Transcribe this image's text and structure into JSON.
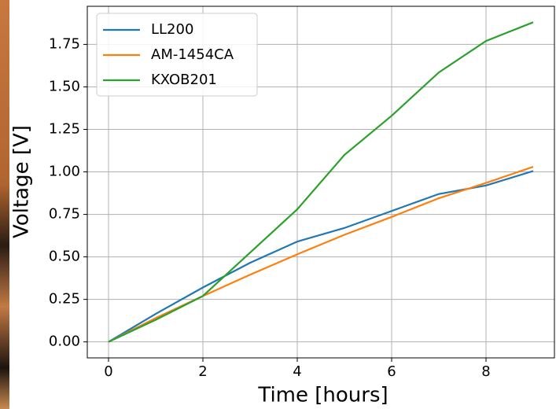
{
  "chart_data": {
    "type": "line",
    "xlabel": "Time [hours]",
    "ylabel": "Voltage [V]",
    "x": [
      0,
      1,
      2,
      3,
      4,
      5,
      6,
      7,
      8,
      9
    ],
    "series": [
      {
        "name": "LL200",
        "color": "#1f77b4",
        "values": [
          0,
          0.165,
          0.32,
          0.465,
          0.59,
          0.67,
          0.77,
          0.87,
          0.92,
          1.005
        ]
      },
      {
        "name": "AM-1454CA",
        "color": "#ff7f0e",
        "values": [
          0,
          0.14,
          0.27,
          0.395,
          0.515,
          0.63,
          0.735,
          0.845,
          0.935,
          1.03
        ]
      },
      {
        "name": "KXOB201",
        "color": "#2ca02c",
        "values": [
          0,
          0.13,
          0.27,
          0.525,
          0.78,
          1.1,
          1.33,
          1.585,
          1.77,
          1.88
        ]
      }
    ],
    "xlim": [
      -0.45,
      9.45
    ],
    "xticks": [
      0,
      2,
      4,
      6,
      8
    ],
    "ylim": [
      -0.094,
      1.974
    ],
    "yticks": [
      {
        "value": 0,
        "label": "0.00"
      },
      {
        "value": 0.25,
        "label": "0.25"
      },
      {
        "value": 0.5,
        "label": "0.50"
      },
      {
        "value": 0.75,
        "label": "0.75"
      },
      {
        "value": 1,
        "label": "1.00"
      },
      {
        "value": 1.25,
        "label": "1.25"
      },
      {
        "value": 1.5,
        "label": "1.50"
      },
      {
        "value": 1.75,
        "label": "1.75"
      }
    ],
    "grid": true,
    "legend": "upper left"
  }
}
